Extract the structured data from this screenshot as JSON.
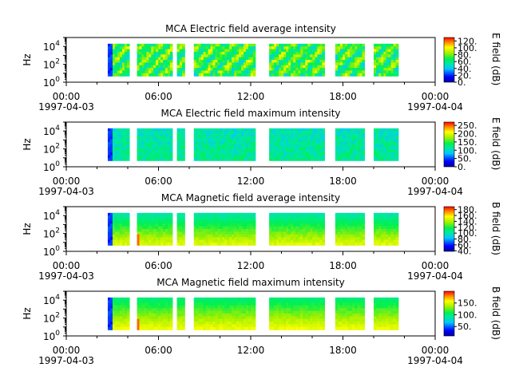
{
  "chart_data": [
    {
      "type": "heatmap",
      "title": "MCA  Electric field average intensity",
      "ylabel": "Hz",
      "xlim": [
        "1997-04-03 00:00",
        "1997-04-04 00:00"
      ],
      "x_ticks": [
        "00:00",
        "06:00",
        "12:00",
        "18:00",
        "00:00"
      ],
      "x_date_labels": [
        "1997-04-03",
        "1997-04-04"
      ],
      "y_scale": "log",
      "y_ticks": [
        {
          "base": "10",
          "exp": "0"
        },
        {
          "base": "10",
          "exp": "2"
        },
        {
          "base": "10",
          "exp": "4"
        }
      ],
      "ylim": [
        1,
        100000
      ],
      "colorbar": {
        "label": "E field (dB)",
        "ticks": [
          "0.",
          "20.",
          "40.",
          "60.",
          "80.",
          "100.",
          "120."
        ],
        "range": [
          0,
          130
        ]
      },
      "data_intervals_hours": [
        [
          2.7,
          4.1
        ],
        [
          4.6,
          6.9
        ],
        [
          7.2,
          7.7
        ],
        [
          8.3,
          12.3
        ],
        [
          13.2,
          16.8
        ],
        [
          17.5,
          19.4
        ],
        [
          20.0,
          21.6
        ]
      ],
      "freq_range_hz": [
        5,
        20000
      ]
    },
    {
      "type": "heatmap",
      "title": "MCA  Electric field maximum intensity",
      "ylabel": "Hz",
      "xlim": [
        "1997-04-03 00:00",
        "1997-04-04 00:00"
      ],
      "x_ticks": [
        "00:00",
        "06:00",
        "12:00",
        "18:00",
        "00:00"
      ],
      "x_date_labels": [
        "1997-04-03",
        "1997-04-04"
      ],
      "y_scale": "log",
      "y_ticks": [
        {
          "base": "10",
          "exp": "0"
        },
        {
          "base": "10",
          "exp": "2"
        },
        {
          "base": "10",
          "exp": "4"
        }
      ],
      "ylim": [
        1,
        100000
      ],
      "colorbar": {
        "label": "E field (dB)",
        "ticks": [
          "0.",
          "50.",
          "100.",
          "150.",
          "200.",
          "250."
        ],
        "range": [
          0,
          270
        ]
      },
      "data_intervals_hours": [
        [
          2.7,
          4.1
        ],
        [
          4.6,
          6.9
        ],
        [
          7.2,
          7.7
        ],
        [
          8.3,
          12.3
        ],
        [
          13.2,
          16.8
        ],
        [
          17.5,
          19.4
        ],
        [
          20.0,
          21.6
        ]
      ],
      "freq_range_hz": [
        5,
        20000
      ]
    },
    {
      "type": "heatmap",
      "title": "MCA  Magnetic field average intensity",
      "ylabel": "Hz",
      "xlim": [
        "1997-04-03 00:00",
        "1997-04-04 00:00"
      ],
      "x_ticks": [
        "00:00",
        "06:00",
        "12:00",
        "18:00",
        "00:00"
      ],
      "x_date_labels": [
        "1997-04-03",
        "1997-04-04"
      ],
      "y_scale": "log",
      "y_ticks": [
        {
          "base": "10",
          "exp": "0"
        },
        {
          "base": "10",
          "exp": "2"
        },
        {
          "base": "10",
          "exp": "4"
        }
      ],
      "ylim": [
        1,
        100000
      ],
      "colorbar": {
        "label": "B field (dB)",
        "ticks": [
          "40.",
          "60.",
          "80.",
          "100.",
          "120.",
          "140.",
          "160.",
          "180."
        ],
        "range": [
          38,
          190
        ]
      },
      "data_intervals_hours": [
        [
          2.7,
          4.1
        ],
        [
          4.6,
          6.9
        ],
        [
          7.2,
          7.7
        ],
        [
          8.3,
          12.3
        ],
        [
          13.2,
          16.8
        ],
        [
          17.5,
          19.4
        ],
        [
          20.0,
          21.6
        ]
      ],
      "freq_range_hz": [
        5,
        20000
      ]
    },
    {
      "type": "heatmap",
      "title": "MCA  Magnetic field maximum intensity",
      "ylabel": "Hz",
      "xlim": [
        "1997-04-03 00:00",
        "1997-04-04 00:00"
      ],
      "x_ticks": [
        "00:00",
        "06:00",
        "12:00",
        "18:00",
        "00:00"
      ],
      "x_date_labels": [
        "1997-04-03",
        "1997-04-04"
      ],
      "y_scale": "log",
      "y_ticks": [
        {
          "base": "10",
          "exp": "0"
        },
        {
          "base": "10",
          "exp": "2"
        },
        {
          "base": "10",
          "exp": "4"
        }
      ],
      "ylim": [
        1,
        100000
      ],
      "colorbar": {
        "label": "B field (dB)",
        "ticks": [
          "50.",
          "100.",
          "150."
        ],
        "range": [
          10,
          200
        ]
      },
      "data_intervals_hours": [
        [
          2.7,
          4.1
        ],
        [
          4.6,
          6.9
        ],
        [
          7.2,
          7.7
        ],
        [
          8.3,
          12.3
        ],
        [
          13.2,
          16.8
        ],
        [
          17.5,
          19.4
        ],
        [
          20.0,
          21.6
        ]
      ],
      "freq_range_hz": [
        5,
        20000
      ]
    }
  ]
}
